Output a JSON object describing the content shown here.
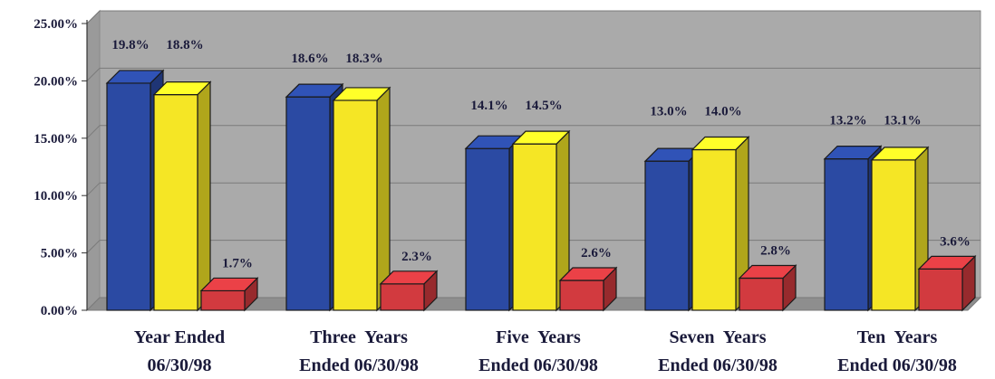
{
  "chart_data": {
    "type": "bar",
    "categories": [
      [
        "Year Ended",
        "06/30/98"
      ],
      [
        "Three  Years",
        "Ended 06/30/98"
      ],
      [
        "Five  Years",
        "Ended 06/30/98"
      ],
      [
        "Seven  Years",
        "Ended 06/30/98"
      ],
      [
        "Ten  Years",
        "Ended 06/30/98"
      ]
    ],
    "series": [
      {
        "color": "#2b4aa3",
        "values": [
          19.8,
          18.6,
          14.1,
          13.0,
          13.2
        ],
        "labels": [
          "19.8%",
          "18.6%",
          "14.1%",
          "13.0%",
          "13.2%"
        ]
      },
      {
        "color": "#f5e625",
        "values": [
          18.8,
          18.3,
          14.5,
          14.0,
          13.1
        ],
        "labels": [
          "18.8%",
          "18.3%",
          "14.5%",
          "14.0%",
          "13.1%"
        ]
      },
      {
        "color": "#d23a3f",
        "values": [
          1.7,
          2.3,
          2.6,
          2.8,
          3.6
        ],
        "labels": [
          "1.7%",
          "2.3%",
          "2.6%",
          "2.8%",
          "3.6%"
        ]
      }
    ],
    "yticks": [
      "0.00%",
      "5.00%",
      "10.00%",
      "15.00%",
      "20.00%",
      "25.00%"
    ],
    "ylim": [
      0,
      25
    ],
    "grid": true,
    "title": "",
    "xlabel": "",
    "ylabel": ""
  }
}
